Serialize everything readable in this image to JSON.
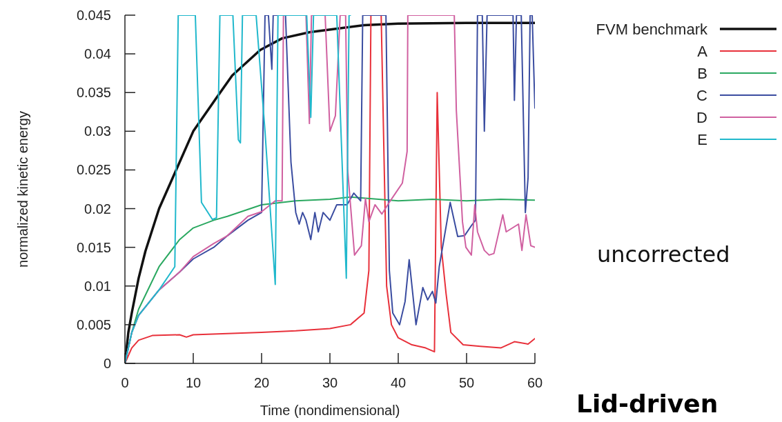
{
  "chart_data": {
    "type": "line",
    "title": "Lid-driven",
    "xlabel": "Time (nondimensional)",
    "ylabel": "normalized kinetic energy",
    "annotations": [
      "uncorrected"
    ],
    "xlim": [
      0,
      60
    ],
    "xticks": [
      0,
      10,
      20,
      30,
      40,
      50,
      60
    ],
    "ylim": [
      0,
      0.045
    ],
    "yticks": [
      0,
      0.005,
      0.01,
      0.015,
      0.02,
      0.025,
      0.03,
      0.035,
      0.04,
      0.045
    ],
    "legend": "top right",
    "grid": false,
    "marker": "none",
    "line_style": "solid",
    "series": [
      {
        "name": "FVM benchmark",
        "color": "#111111",
        "x": [
          0,
          0.5,
          1,
          2,
          3,
          5,
          7.8,
          10,
          13.3,
          15.7,
          19.8,
          23,
          27,
          30.5,
          35,
          40,
          50,
          60
        ],
        "values": [
          0,
          0.004,
          0.0065,
          0.011,
          0.0145,
          0.02,
          0.0256,
          0.03,
          0.0342,
          0.0372,
          0.0405,
          0.042,
          0.0428,
          0.0432,
          0.0437,
          0.0439,
          0.044,
          0.044
        ]
      },
      {
        "name": "A",
        "color": "#e8303a",
        "x": [
          0,
          1,
          2,
          4,
          8,
          9,
          10,
          20,
          25,
          30,
          33,
          35,
          35.7,
          36,
          37.5,
          38.3,
          39,
          40,
          42,
          44,
          45.3,
          45.7,
          46.3,
          47,
          47.7,
          49.5,
          52,
          55,
          57,
          59,
          60
        ],
        "values": [
          0,
          0.002,
          0.003,
          0.0036,
          0.0037,
          0.0034,
          0.0037,
          0.004,
          0.0042,
          0.0045,
          0.005,
          0.0065,
          0.012,
          0.045,
          0.045,
          0.01,
          0.005,
          0.0033,
          0.0024,
          0.002,
          0.0015,
          0.035,
          0.015,
          0.009,
          0.004,
          0.0024,
          0.0022,
          0.002,
          0.0028,
          0.0025,
          0.0032
        ]
      },
      {
        "name": "B",
        "color": "#2aa860",
        "x": [
          0,
          1,
          2,
          5,
          8,
          10,
          13,
          15,
          20,
          25,
          30,
          33,
          40,
          45,
          50,
          55,
          60
        ],
        "values": [
          0,
          0.004,
          0.007,
          0.0125,
          0.016,
          0.0175,
          0.0185,
          0.019,
          0.0205,
          0.021,
          0.0212,
          0.0215,
          0.021,
          0.0212,
          0.021,
          0.0212,
          0.0211
        ]
      },
      {
        "name": "C",
        "color": "#3a4ca0",
        "x": [
          0,
          1,
          2,
          5,
          8,
          10,
          13,
          15,
          18,
          20,
          20.5,
          21,
          21.5,
          21.7,
          23.5,
          24.3,
          25,
          25.5,
          26,
          26.5,
          27.2,
          27.8,
          28.3,
          29,
          30,
          31,
          32.5,
          33.5,
          34.5,
          34.8,
          38.2,
          38.7,
          39.2,
          40.2,
          41,
          41.6,
          42.6,
          43.6,
          44.3,
          45,
          45.5,
          46,
          47.6,
          48.7,
          49.7,
          50.7,
          51.3,
          51.6,
          52.3,
          52.6,
          53,
          56.8,
          57,
          57.3,
          58,
          58.6,
          59,
          59.3,
          59.6,
          60
        ],
        "values": [
          0,
          0.004,
          0.0062,
          0.0095,
          0.0118,
          0.0135,
          0.015,
          0.0165,
          0.0185,
          0.0195,
          0.045,
          0.045,
          0.038,
          0.045,
          0.045,
          0.026,
          0.0195,
          0.018,
          0.0195,
          0.0185,
          0.016,
          0.0195,
          0.017,
          0.0195,
          0.0185,
          0.0205,
          0.0205,
          0.022,
          0.021,
          0.045,
          0.045,
          0.012,
          0.0065,
          0.005,
          0.008,
          0.0134,
          0.005,
          0.0098,
          0.0082,
          0.0093,
          0.0078,
          0.0125,
          0.0208,
          0.0164,
          0.0165,
          0.0178,
          0.0185,
          0.045,
          0.045,
          0.03,
          0.045,
          0.045,
          0.034,
          0.045,
          0.045,
          0.0195,
          0.024,
          0.045,
          0.045,
          0.033
        ]
      },
      {
        "name": "D",
        "color": "#d060a0",
        "x": [
          0,
          1,
          2,
          5,
          8,
          10,
          13,
          15,
          18,
          20,
          22,
          23,
          23.2,
          26.5,
          27,
          27.3,
          29.3,
          30,
          30.8,
          31.5,
          32.3,
          32.6,
          33.6,
          34.6,
          35.2,
          35.7,
          36.6,
          37.6,
          38.6,
          39.6,
          40.6,
          41.3,
          41.4,
          48.2,
          48.5,
          49.4,
          49.9,
          50.7,
          51.2,
          51.6,
          52.6,
          53.3,
          54,
          55.3,
          55.8,
          57.6,
          58.1,
          58.7,
          59.4,
          60
        ],
        "values": [
          0,
          0.004,
          0.0062,
          0.0095,
          0.0118,
          0.0138,
          0.0155,
          0.0165,
          0.019,
          0.0196,
          0.021,
          0.021,
          0.045,
          0.045,
          0.031,
          0.045,
          0.045,
          0.03,
          0.032,
          0.045,
          0.045,
          0.025,
          0.014,
          0.0152,
          0.0213,
          0.0183,
          0.0205,
          0.0193,
          0.0207,
          0.022,
          0.0233,
          0.0274,
          0.045,
          0.045,
          0.0327,
          0.0183,
          0.015,
          0.014,
          0.0205,
          0.017,
          0.0146,
          0.014,
          0.0142,
          0.0192,
          0.017,
          0.018,
          0.0146,
          0.0192,
          0.0152,
          0.015
        ]
      },
      {
        "name": "E",
        "color": "#20b8cc",
        "x": [
          0,
          1,
          2,
          5,
          7.3,
          7.8,
          10.3,
          11.2,
          12.8,
          13.4,
          13.9,
          15.8,
          16.6,
          16.9,
          17.2,
          19.2,
          20.5,
          22,
          22.4,
          26.6,
          27.2,
          27.6,
          31,
          32.4,
          32.8,
          33
        ],
        "values": [
          0,
          0.004,
          0.0062,
          0.0095,
          0.0125,
          0.045,
          0.045,
          0.0208,
          0.0186,
          0.0188,
          0.045,
          0.045,
          0.0289,
          0.0285,
          0.045,
          0.045,
          0.03,
          0.0102,
          0.045,
          0.045,
          0.0318,
          0.045,
          0.045,
          0.011,
          0.045,
          0.045
        ]
      }
    ]
  }
}
